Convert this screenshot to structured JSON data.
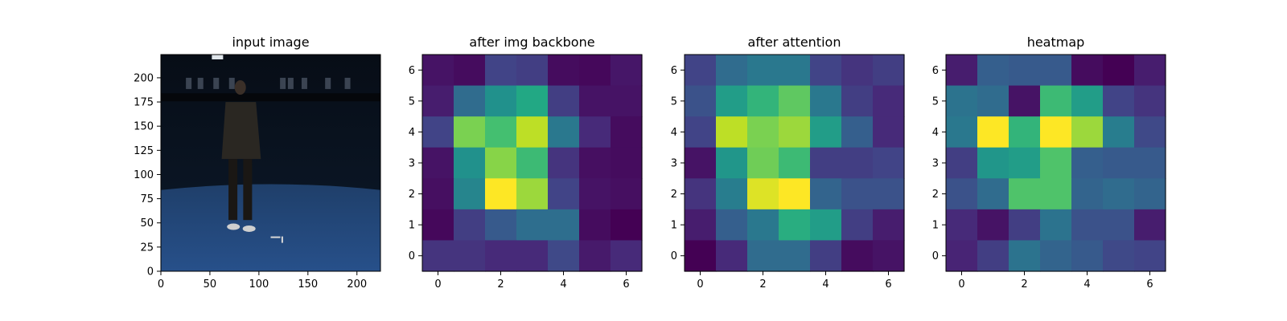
{
  "chart_data": [
    {
      "type": "image",
      "title": "input image",
      "xticks": [
        0,
        50,
        100,
        150,
        200
      ],
      "yticks": [
        0,
        25,
        50,
        75,
        100,
        125,
        150,
        175,
        200
      ],
      "xlim": [
        0,
        224
      ],
      "ylim": [
        224,
        0
      ],
      "colors": {
        "floor": "#1f3f6a",
        "wall": "#0c1a2c",
        "rig": "#05070b",
        "person": "#2a2722"
      }
    },
    {
      "type": "heatmap",
      "title": "after img backbone",
      "xticks": [
        0,
        2,
        4,
        6
      ],
      "yticks": [
        0,
        1,
        2,
        3,
        4,
        5,
        6
      ],
      "xlim": [
        -0.5,
        6.5
      ],
      "ylim": [
        6.5,
        -0.5
      ],
      "values": [
        [
          0.05,
          0.03,
          0.2,
          0.18,
          0.03,
          0.02,
          0.06
        ],
        [
          0.08,
          0.35,
          0.5,
          0.6,
          0.18,
          0.05,
          0.05
        ],
        [
          0.2,
          0.8,
          0.7,
          0.9,
          0.4,
          0.12,
          0.03
        ],
        [
          0.05,
          0.5,
          0.82,
          0.68,
          0.15,
          0.04,
          0.03
        ],
        [
          0.04,
          0.45,
          1.0,
          0.85,
          0.2,
          0.05,
          0.04
        ],
        [
          0.02,
          0.18,
          0.28,
          0.36,
          0.36,
          0.03,
          0.0
        ],
        [
          0.15,
          0.15,
          0.12,
          0.12,
          0.22,
          0.07,
          0.12
        ]
      ]
    },
    {
      "type": "heatmap",
      "title": "after attention",
      "xticks": [
        0,
        2,
        4,
        6
      ],
      "yticks": [
        0,
        1,
        2,
        3,
        4,
        5,
        6
      ],
      "xlim": [
        -0.5,
        6.5
      ],
      "ylim": [
        6.5,
        -0.5
      ],
      "values": [
        [
          0.2,
          0.35,
          0.4,
          0.4,
          0.2,
          0.15,
          0.18
        ],
        [
          0.25,
          0.55,
          0.65,
          0.75,
          0.4,
          0.18,
          0.12
        ],
        [
          0.2,
          0.9,
          0.8,
          0.85,
          0.55,
          0.3,
          0.12
        ],
        [
          0.05,
          0.52,
          0.78,
          0.68,
          0.18,
          0.18,
          0.2
        ],
        [
          0.15,
          0.42,
          0.95,
          1.0,
          0.32,
          0.25,
          0.25
        ],
        [
          0.08,
          0.3,
          0.4,
          0.62,
          0.55,
          0.18,
          0.08
        ],
        [
          0.0,
          0.12,
          0.35,
          0.35,
          0.18,
          0.03,
          0.05
        ]
      ]
    },
    {
      "type": "heatmap",
      "title": "heatmap",
      "xticks": [
        0,
        2,
        4,
        6
      ],
      "yticks": [
        0,
        1,
        2,
        3,
        4,
        5,
        6
      ],
      "xlim": [
        -0.5,
        6.5
      ],
      "ylim": [
        6.5,
        -0.5
      ],
      "values": [
        [
          0.08,
          0.3,
          0.28,
          0.28,
          0.03,
          0.0,
          0.08
        ],
        [
          0.38,
          0.35,
          0.05,
          0.68,
          0.55,
          0.2,
          0.15
        ],
        [
          0.4,
          1.0,
          0.65,
          1.0,
          0.85,
          0.42,
          0.22
        ],
        [
          0.18,
          0.52,
          0.55,
          0.72,
          0.3,
          0.28,
          0.28
        ],
        [
          0.25,
          0.35,
          0.72,
          0.72,
          0.32,
          0.35,
          0.32
        ],
        [
          0.12,
          0.05,
          0.18,
          0.38,
          0.25,
          0.25,
          0.08
        ],
        [
          0.1,
          0.18,
          0.38,
          0.32,
          0.28,
          0.22,
          0.2
        ]
      ]
    }
  ]
}
